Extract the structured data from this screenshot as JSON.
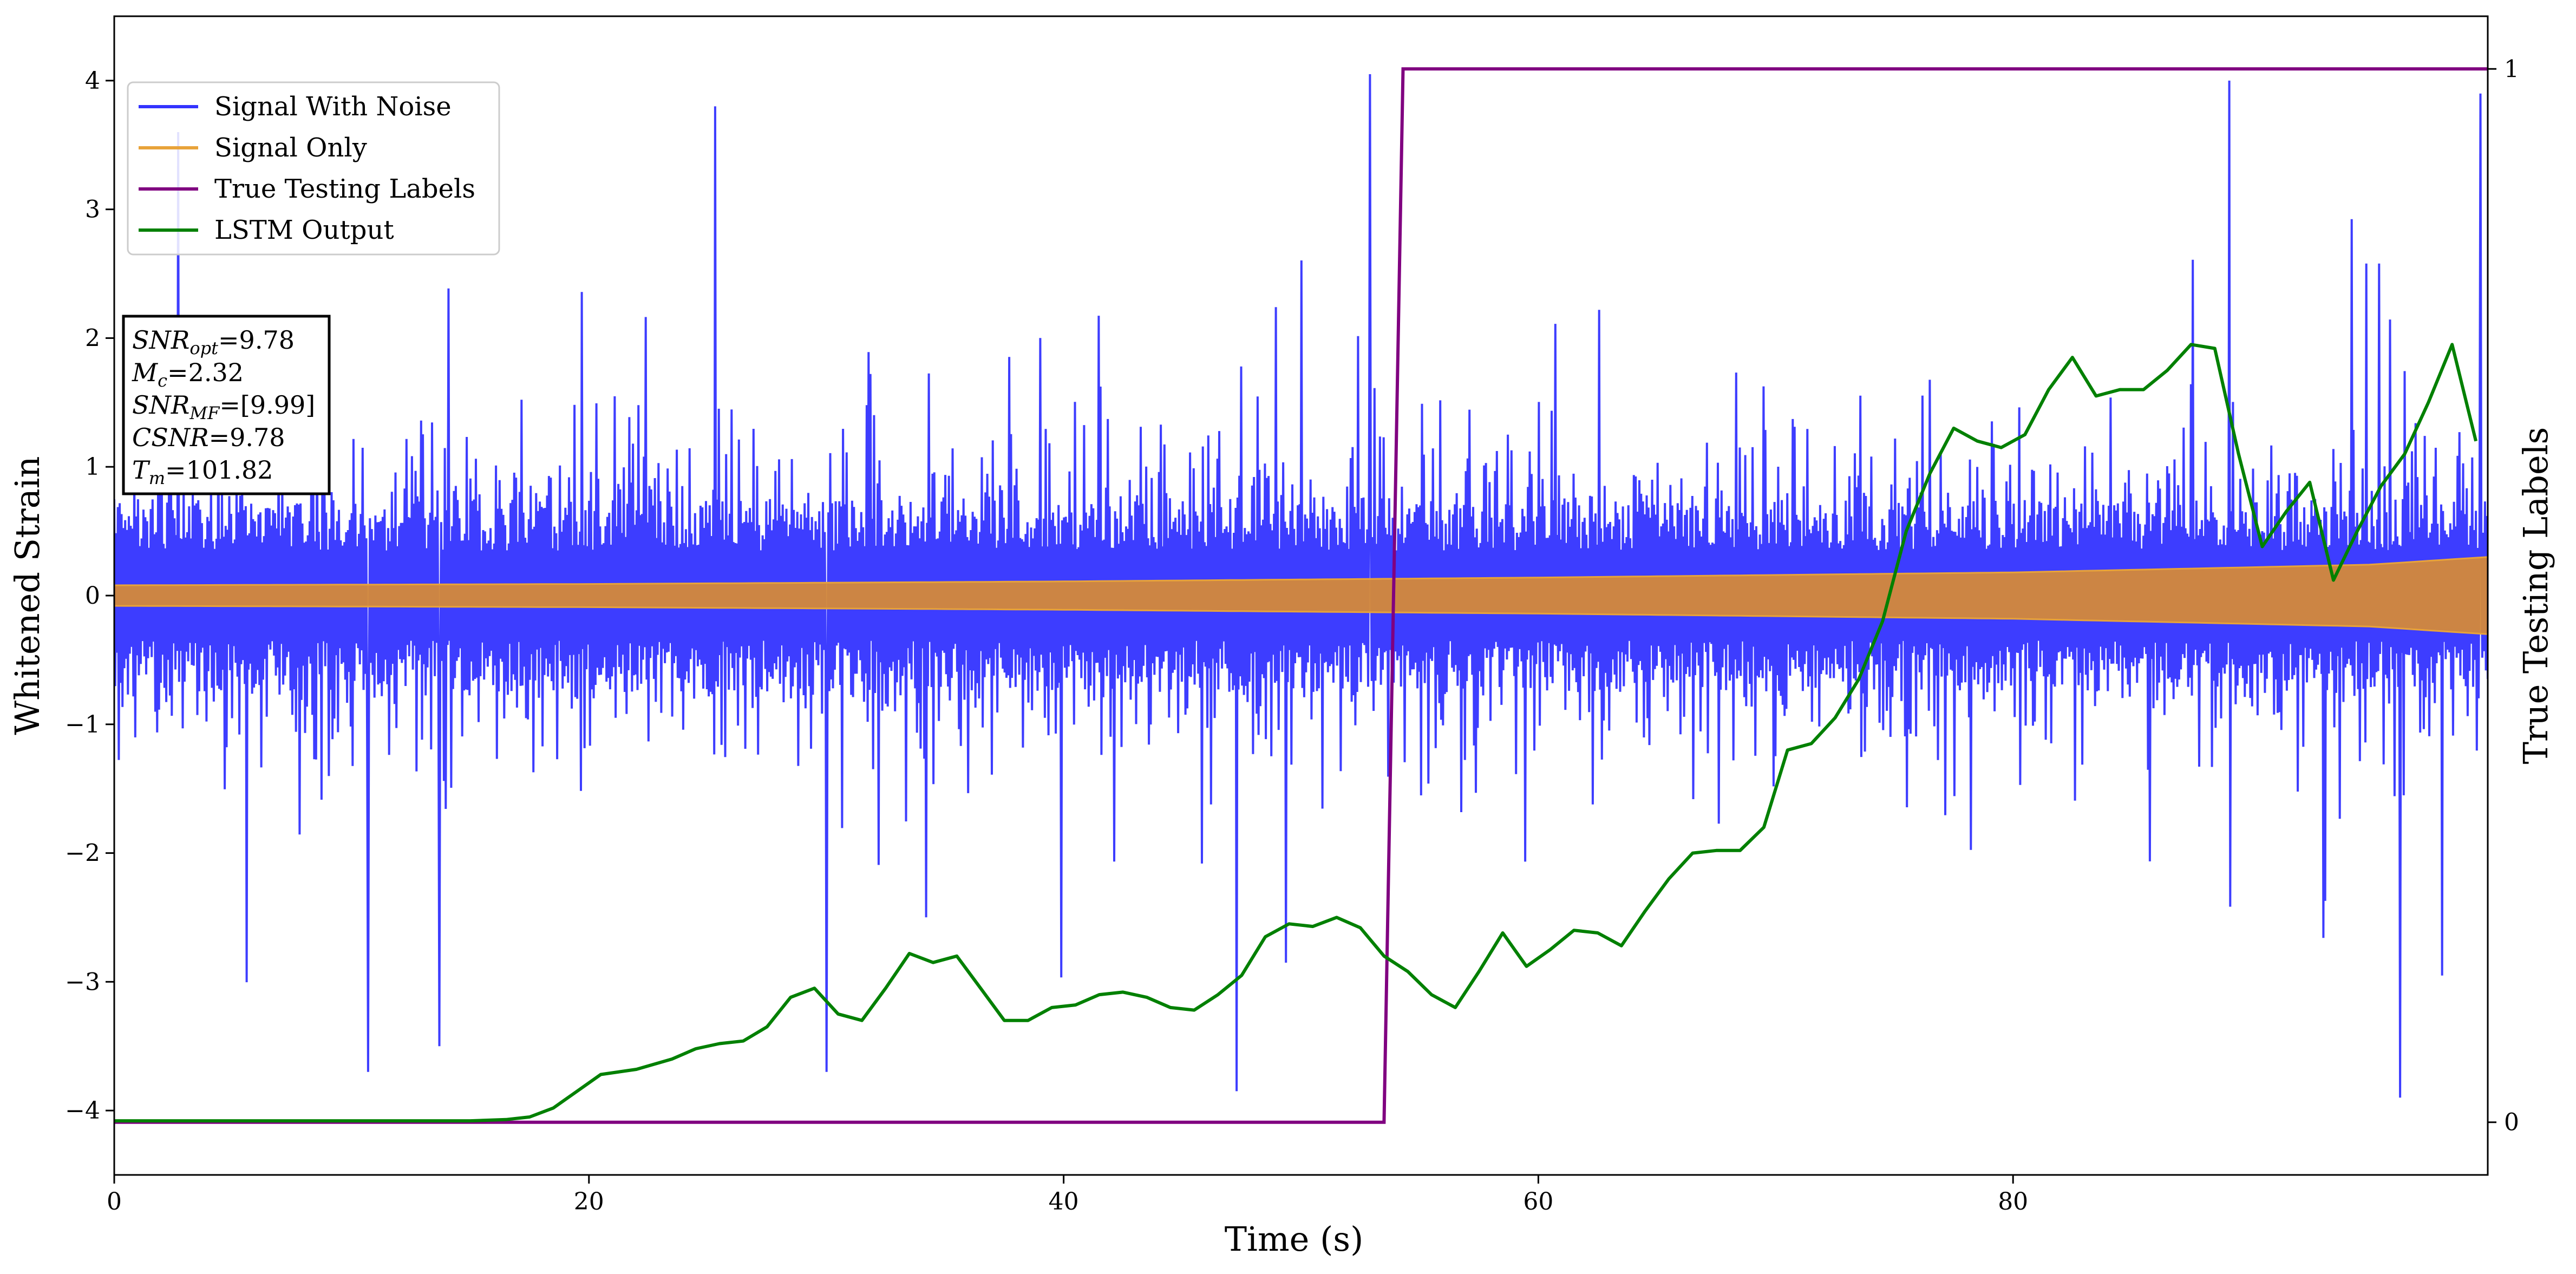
{
  "chart_data": {
    "type": "line",
    "xlabel": "Time (s)",
    "ylabel": "Whitened Strain",
    "y2label": "True Testing Labels",
    "xlim": [
      0,
      100
    ],
    "ylim": [
      -4.5,
      4.5
    ],
    "y2lim": [
      -0.05,
      1.05
    ],
    "xticks": [
      0,
      20,
      40,
      60,
      80
    ],
    "yticks": [
      -4,
      -3,
      -2,
      -1,
      0,
      1,
      2,
      3,
      4
    ],
    "y2ticks": [
      0,
      1
    ],
    "grid": false,
    "legend_placement": "upper-left",
    "legend": [
      "Signal With Noise",
      "Signal Only",
      "True Testing Labels",
      "LSTM Output"
    ],
    "series": [
      {
        "name": "Signal With Noise",
        "color": "#3333ff",
        "style": "dense-oscillation",
        "envelope_typical": [
          [
            0,
            1.5
          ],
          [
            100,
            1.5
          ]
        ],
        "extremes": [
          [
            2.7,
            3.6
          ],
          [
            10.7,
            -3.7
          ],
          [
            13.7,
            -3.5
          ],
          [
            25.3,
            3.8
          ],
          [
            30.0,
            -3.7
          ],
          [
            47.3,
            -3.85
          ],
          [
            52.9,
            4.05
          ],
          [
            89.1,
            4.0
          ],
          [
            96.3,
            -3.9
          ],
          [
            99.7,
            3.9
          ]
        ]
      },
      {
        "name": "Signal Only",
        "color": "#e8a33a",
        "style": "chirp-band",
        "amplitude": [
          [
            0,
            0.08
          ],
          [
            20,
            0.09
          ],
          [
            40,
            0.11
          ],
          [
            60,
            0.14
          ],
          [
            80,
            0.18
          ],
          [
            95,
            0.24
          ],
          [
            100,
            0.3
          ]
        ]
      },
      {
        "name": "True Testing Labels",
        "color": "#800080",
        "axis": "y2",
        "x": [
          0,
          53.5,
          54.3,
          100
        ],
        "y": [
          0,
          0,
          1,
          1
        ]
      },
      {
        "name": "LSTM Output",
        "color": "#008000",
        "axis": "y",
        "x": [
          0,
          8,
          15,
          16.5,
          17.5,
          18.5,
          19.5,
          20.5,
          22,
          23.5,
          24.5,
          25.5,
          26.5,
          27.5,
          28.5,
          29.5,
          30.5,
          31.5,
          32.5,
          33.5,
          34.5,
          35.5,
          36.5,
          37.5,
          38.5,
          39.5,
          40.5,
          41.5,
          42.5,
          43.5,
          44.5,
          45.5,
          46.5,
          47.5,
          48.5,
          49.5,
          50.5,
          51.5,
          52.5,
          53.5,
          54.5,
          55.5,
          56.5,
          57.5,
          58.5,
          59.5,
          60.5,
          61.5,
          62.5,
          63.5,
          64.5,
          65.5,
          66.5,
          67.5,
          68.5,
          69.5,
          70.5,
          71.5,
          72.5,
          73.5,
          74.5,
          75.5,
          76.5,
          77.5,
          78.5,
          79.5,
          80.5,
          81.5,
          82.5,
          83.5,
          84.5,
          85.5,
          86.5,
          87.5,
          88.5,
          89.5,
          90.5,
          91.5,
          92.5,
          93.5,
          94.5,
          95.5,
          96.5,
          97.5,
          98.5,
          99.5
        ],
        "y": [
          -4.08,
          -4.08,
          -4.08,
          -4.07,
          -4.05,
          -3.98,
          -3.85,
          -3.72,
          -3.68,
          -3.6,
          -3.52,
          -3.48,
          -3.46,
          -3.35,
          -3.12,
          -3.05,
          -3.25,
          -3.3,
          -3.05,
          -2.78,
          -2.85,
          -2.8,
          -3.05,
          -3.3,
          -3.3,
          -3.2,
          -3.18,
          -3.1,
          -3.08,
          -3.12,
          -3.2,
          -3.22,
          -3.1,
          -2.95,
          -2.65,
          -2.55,
          -2.57,
          -2.5,
          -2.58,
          -2.8,
          -2.92,
          -3.1,
          -3.2,
          -2.92,
          -2.62,
          -2.88,
          -2.75,
          -2.6,
          -2.62,
          -2.72,
          -2.45,
          -2.2,
          -2.0,
          -1.98,
          -1.98,
          -1.8,
          -1.2,
          -1.15,
          -0.95,
          -0.65,
          -0.2,
          0.5,
          0.95,
          1.3,
          1.2,
          1.15,
          1.25,
          1.6,
          1.85,
          1.55,
          1.6,
          1.6,
          1.75,
          1.95,
          1.92,
          1.1,
          0.38,
          0.65,
          0.88,
          0.12,
          0.5,
          0.85,
          1.1,
          1.5,
          1.95,
          1.2
        ]
      }
    ],
    "annotation_box": [
      {
        "main": "SNR",
        "sub": "opt",
        "value": "=9.78"
      },
      {
        "main": "M",
        "sub": "c",
        "value": "=2.32"
      },
      {
        "main": "SNR",
        "sub": "MF",
        "value": "=[9.99]"
      },
      {
        "main": "CSNR",
        "sub": "",
        "value": "=9.78"
      },
      {
        "main": "T",
        "sub": "m",
        "value": "=101.82"
      }
    ]
  }
}
